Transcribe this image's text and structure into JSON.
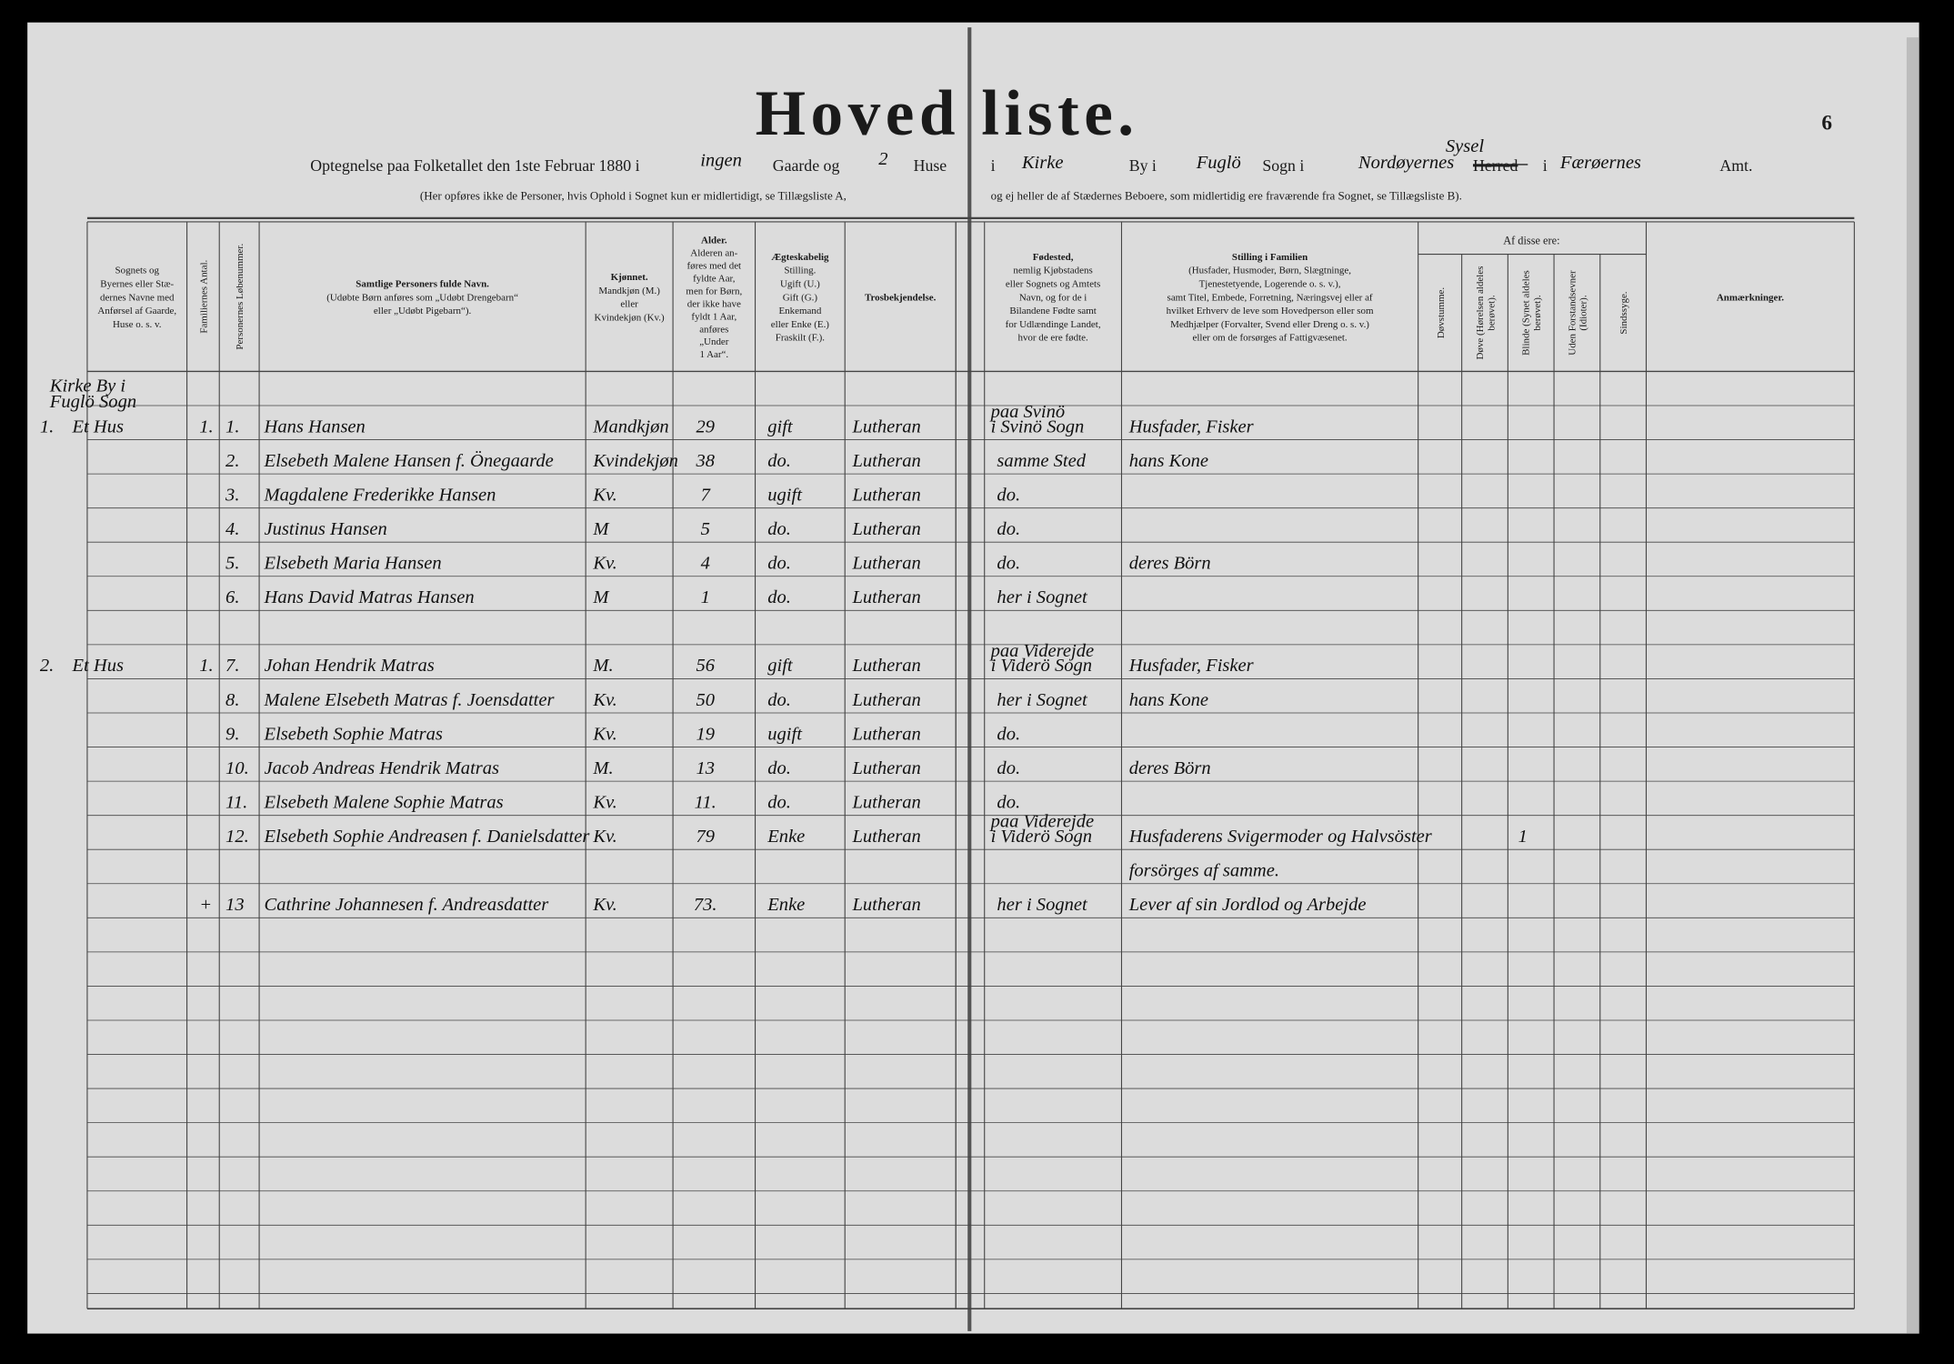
{
  "header": {
    "title": "Hoved liste.",
    "page_number": "6",
    "line1": {
      "intro": "Optegnelse paa Folketallet den 1ste Februar 1880 i",
      "gaarde_count": "ingen",
      "gaarde": "Gaarde og",
      "huse_count": "2",
      "huse": "Huse",
      "i_1": "i",
      "by_name": "Kirke",
      "by": "By i",
      "sogn_name": "Fuglö",
      "sogn": "Sogn i",
      "herred_name": "Nordøyernes",
      "herred_note": "Sysel",
      "herred": "Herred",
      "i_2": "i",
      "amt_name": "Færøernes",
      "amt": "Amt."
    },
    "line2_left": "(Her opføres ikke de Personer, hvis Ophold i Sognet kun er midlertidigt, se Tillægsliste A,",
    "line2_right": "og ej heller de af Stædernes Beboere, som midlertidig ere fraværende fra Sognet, se Tillægsliste B)."
  },
  "table": {
    "group_header": "Af disse ere:",
    "columns": [
      [
        "Sognets og",
        "Byernes eller Stæ-",
        "dernes Navne med",
        "Anførsel af Gaarde,",
        "Huse o. s. v."
      ],
      [
        "Familiernes Antal."
      ],
      [
        "Personernes Løbenummer."
      ],
      [
        "Samtlige Personers fulde Navn.",
        "(Udøbte Børn anføres som „Udøbt Drengebarn“",
        "eller „Udøbt Pigebarn“)."
      ],
      [
        "Kjønnet.",
        "Mandkjøn (M.)",
        "eller",
        "Kvindekjøn (Kv.)"
      ],
      [
        "Alder.",
        "Alderen an-",
        "føres med det",
        "fyldte Aar,",
        "men for Børn,",
        "der ikke have",
        "fyldt 1 Aar,",
        "anføres",
        "„Under",
        "1 Aar“."
      ],
      [
        "Ægteskabelig",
        "Stilling.",
        "Ugift (U.)",
        "Gift (G.)",
        "Enkemand",
        "eller Enke (E.)",
        "Fraskilt (F.)."
      ],
      [
        "Trosbekjendelse."
      ],
      [
        "Fødested,",
        "nemlig Kjøbstadens",
        "eller Sognets og Amtets",
        "Navn, og for de i",
        "Bilandene Fødte samt",
        "for Udlændinge Landet,",
        "hvor de ere fødte."
      ],
      [
        "Stilling i Familien",
        "(Husfader, Husmoder, Børn, Slægtninge,",
        "Tjenestetyende, Logerende o. s. v.),",
        "samt Titel, Embede, Forretning, Næringsvej eller af",
        "hvilket Erhverv de leve som Hovedperson eller som",
        "Medhjælper (Forvalter, Svend eller Dreng o. s. v.)",
        "eller om de forsørges af Fattigvæsenet."
      ],
      [
        "Døvstumme."
      ],
      [
        "Døve (Hørelsen aldeles",
        "berøvet)."
      ],
      [
        "Blinde (Synet aldeles",
        "berøvet)."
      ],
      [
        "Uden Forstandsevner",
        "(Idioter)."
      ],
      [
        "Sindssyge."
      ],
      [
        "Anmærkninger."
      ]
    ],
    "parish": [
      "Kirke By i",
      "Fuglö Sogn"
    ],
    "households": [
      {
        "number": "1.",
        "place": "Et Hus",
        "families": "1.",
        "persons": [
          {
            "no": "1.",
            "name": "Hans Hansen",
            "sex": "Mandkjøn",
            "age": "29",
            "marital": "gift",
            "religion": "Lutheran",
            "birthplace": [
              "paa Svinö",
              "i Svinö Sogn"
            ],
            "occupation": [
              "Husfader, Fisker"
            ]
          },
          {
            "no": "2.",
            "name": "Elsebeth Malene Hansen f. Önegaarde",
            "sex": "Kvindekjøn",
            "age": "38",
            "marital": "do.",
            "religion": "Lutheran",
            "birthplace": [
              "samme Sted"
            ],
            "occupation": [
              "hans Kone"
            ]
          },
          {
            "no": "3.",
            "name": "Magdalene Frederikke Hansen",
            "sex": "Kv.",
            "age": "7",
            "marital": "ugift",
            "religion": "Lutheran",
            "birthplace": [
              "do."
            ]
          },
          {
            "no": "4.",
            "name": "Justinus Hansen",
            "sex": "M",
            "age": "5",
            "marital": "do.",
            "religion": "Lutheran",
            "birthplace": [
              "do."
            ]
          },
          {
            "no": "5.",
            "name": "Elsebeth Maria Hansen",
            "sex": "Kv.",
            "age": "4",
            "marital": "do.",
            "religion": "Lutheran",
            "birthplace": [
              "do."
            ],
            "occupation": [
              "deres Börn"
            ]
          },
          {
            "no": "6.",
            "name": "Hans David Matras Hansen",
            "sex": "M",
            "age": "1",
            "marital": "do.",
            "religion": "Lutheran",
            "birthplace": [
              "her i Sognet"
            ]
          }
        ]
      },
      {
        "number": "2.",
        "place": "Et Hus",
        "families": "1.",
        "persons": [
          {
            "no": "7.",
            "name": "Johan Hendrik Matras",
            "sex": "M.",
            "age": "56",
            "marital": "gift",
            "religion": "Lutheran",
            "birthplace": [
              "paa Viderejde",
              "i Viderö Sogn"
            ],
            "occupation": [
              "Husfader, Fisker"
            ]
          },
          {
            "no": "8.",
            "name": "Malene Elsebeth Matras f. Joensdatter",
            "sex": "Kv.",
            "age": "50",
            "marital": "do.",
            "religion": "Lutheran",
            "birthplace": [
              "her i Sognet"
            ],
            "occupation": [
              "hans Kone"
            ]
          },
          {
            "no": "9.",
            "name": "Elsebeth Sophie Matras",
            "sex": "Kv.",
            "age": "19",
            "marital": "ugift",
            "religion": "Lutheran",
            "birthplace": [
              "do."
            ]
          },
          {
            "no": "10.",
            "name": "Jacob Andreas Hendrik Matras",
            "sex": "M.",
            "age": "13",
            "marital": "do.",
            "religion": "Lutheran",
            "birthplace": [
              "do."
            ],
            "occupation": [
              "deres Börn"
            ]
          },
          {
            "no": "11.",
            "name": "Elsebeth Malene Sophie Matras",
            "sex": "Kv.",
            "age": "11.",
            "marital": "do.",
            "religion": "Lutheran",
            "birthplace": [
              "do."
            ]
          },
          {
            "no": "12.",
            "name": "Elsebeth Sophie Andreasen f. Danielsdatter",
            "sex": "Kv.",
            "age": "79",
            "marital": "Enke",
            "religion": "Lutheran",
            "birthplace": [
              "paa Viderejde",
              "i Viderö Sogn"
            ],
            "occupation": [
              "Husfaderens Svigermoder og Halvsöster",
              "forsörges af samme."
            ],
            "blind": "1"
          }
        ]
      },
      {
        "families": "+",
        "persons": [
          {
            "no": "13",
            "name": "Cathrine Johannesen f. Andreasdatter",
            "sex": "Kv.",
            "age": "73.",
            "marital": "Enke",
            "religion": "Lutheran",
            "birthplace": [
              "her i Sognet"
            ],
            "occupation": [
              "Lever af sin Jordlod og Arbejde"
            ]
          }
        ]
      }
    ]
  }
}
